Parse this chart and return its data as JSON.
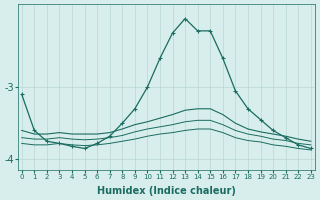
{
  "xlabel": "Humidex (Indice chaleur)",
  "bg_color": "#d8eeed",
  "grid_color": "#b8d8d4",
  "line_color": "#1a6b60",
  "x": [
    0,
    1,
    2,
    3,
    4,
    5,
    6,
    7,
    8,
    9,
    10,
    11,
    12,
    13,
    14,
    15,
    16,
    17,
    18,
    19,
    20,
    21,
    22,
    23
  ],
  "line_main": [
    -3.1,
    -3.6,
    -3.75,
    -3.78,
    -3.82,
    -3.85,
    -3.78,
    -3.68,
    -3.5,
    -3.3,
    -3.0,
    -2.6,
    -2.25,
    -2.05,
    -2.22,
    -2.22,
    -2.6,
    -3.05,
    -3.3,
    -3.45,
    -3.6,
    -3.7,
    -3.8,
    -3.85
  ],
  "line_a": [
    -3.6,
    -3.65,
    -3.65,
    -3.63,
    -3.65,
    -3.65,
    -3.65,
    -3.63,
    -3.58,
    -3.52,
    -3.48,
    -3.43,
    -3.38,
    -3.32,
    -3.3,
    -3.3,
    -3.38,
    -3.5,
    -3.58,
    -3.62,
    -3.65,
    -3.68,
    -3.72,
    -3.75
  ],
  "line_b": [
    -3.7,
    -3.72,
    -3.72,
    -3.7,
    -3.72,
    -3.73,
    -3.72,
    -3.7,
    -3.67,
    -3.62,
    -3.58,
    -3.55,
    -3.52,
    -3.48,
    -3.46,
    -3.46,
    -3.52,
    -3.6,
    -3.65,
    -3.68,
    -3.72,
    -3.74,
    -3.78,
    -3.8
  ],
  "line_c": [
    -3.78,
    -3.8,
    -3.8,
    -3.78,
    -3.8,
    -3.81,
    -3.8,
    -3.78,
    -3.75,
    -3.72,
    -3.68,
    -3.65,
    -3.63,
    -3.6,
    -3.58,
    -3.58,
    -3.63,
    -3.7,
    -3.74,
    -3.76,
    -3.8,
    -3.82,
    -3.85,
    -3.87
  ],
  "ylim": [
    -4.15,
    -1.85
  ],
  "yticks": [
    -4.0,
    -3.0
  ],
  "xlim": [
    -0.3,
    23.3
  ]
}
